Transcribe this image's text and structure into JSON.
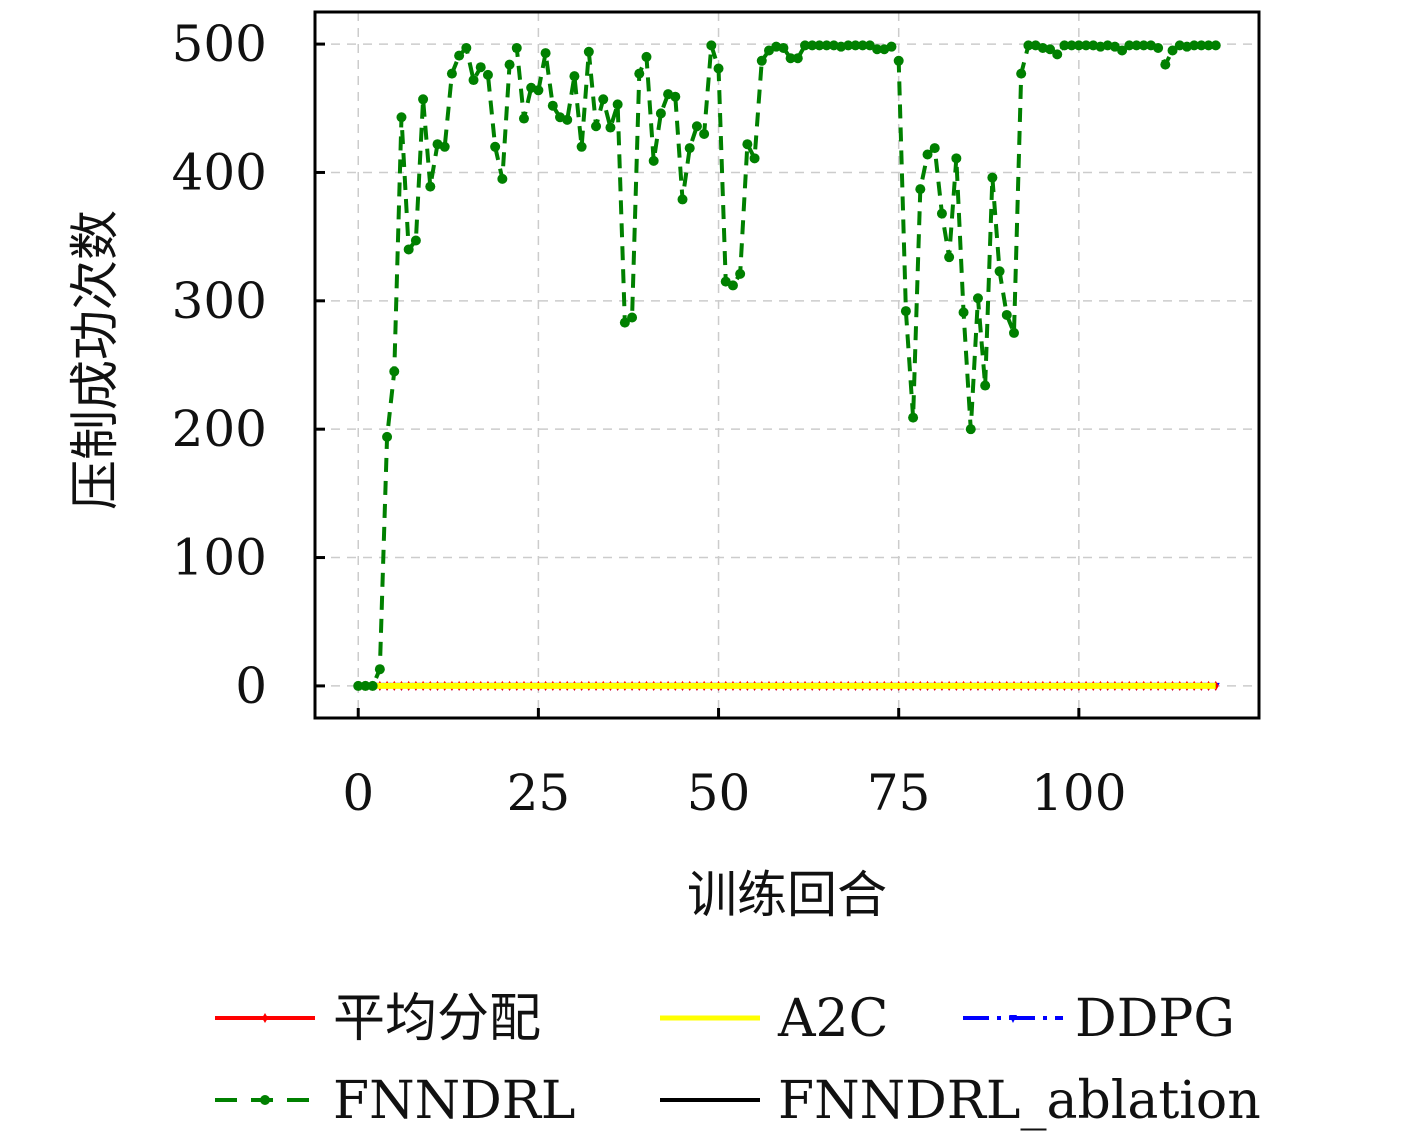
{
  "chart_data": {
    "type": "line",
    "title": "",
    "xlabel": "训练回合",
    "ylabel": "压制成功次数",
    "xlim": [
      -6,
      125
    ],
    "ylim": [
      -25,
      525
    ],
    "xticks": [
      0,
      25,
      50,
      75,
      100
    ],
    "yticks": [
      0,
      100,
      200,
      300,
      400,
      500
    ],
    "grid": true,
    "legend_position": "bottom",
    "series": [
      {
        "name": "平均分配",
        "color": "#ff0000",
        "linestyle": "solid",
        "marker": "diamond",
        "x_start": 0,
        "x_end": 119,
        "constant": 0
      },
      {
        "name": "A2C",
        "color": "#ffff00",
        "linestyle": "solid",
        "marker": "none",
        "x_start": 0,
        "x_end": 119,
        "constant": 0
      },
      {
        "name": "DDPG",
        "color": "#0000ff",
        "linestyle": "dashdot",
        "marker": "triangle-down",
        "x_start": 0,
        "x_end": 119,
        "constant": 0
      },
      {
        "name": "FNNDRL",
        "color": "#008000",
        "linestyle": "dashed",
        "marker": "dot",
        "x": [
          0,
          1,
          2,
          3,
          4,
          5,
          6,
          7,
          8,
          9,
          10,
          11,
          12,
          13,
          14,
          15,
          16,
          17,
          18,
          19,
          20,
          21,
          22,
          23,
          24,
          25,
          26,
          27,
          28,
          29,
          30,
          31,
          32,
          33,
          34,
          35,
          36,
          37,
          38,
          39,
          40,
          41,
          42,
          43,
          44,
          45,
          46,
          47,
          48,
          49,
          50,
          51,
          52,
          53,
          54,
          55,
          56,
          57,
          58,
          59,
          60,
          61,
          62,
          63,
          64,
          65,
          66,
          67,
          68,
          69,
          70,
          71,
          72,
          73,
          74,
          75,
          76,
          77,
          78,
          79,
          80,
          81,
          82,
          83,
          84,
          85,
          86,
          87,
          88,
          89,
          90,
          91,
          92,
          93,
          94,
          95,
          96,
          97,
          98,
          99,
          100,
          101,
          102,
          103,
          104,
          105,
          106,
          107,
          108,
          109,
          110,
          111,
          112,
          113,
          114,
          115,
          116,
          117,
          118,
          119
        ],
        "y": [
          0,
          0,
          0,
          13,
          194,
          245,
          443,
          340,
          347,
          457,
          389,
          422,
          420,
          477,
          491,
          497,
          472,
          482,
          476,
          420,
          395,
          484,
          497,
          442,
          466,
          464,
          493,
          452,
          443,
          441,
          475,
          420,
          494,
          436,
          457,
          435,
          453,
          283,
          287,
          477,
          490,
          409,
          446,
          461,
          459,
          379,
          419,
          436,
          430,
          499,
          481,
          315,
          312,
          321,
          422,
          411,
          487,
          495,
          498,
          497,
          489,
          489,
          499,
          499,
          499,
          499,
          499,
          498,
          499,
          499,
          499,
          499,
          496,
          496,
          498,
          487,
          292,
          209,
          387,
          414,
          419,
          368,
          334,
          411,
          291,
          200,
          302,
          234,
          396,
          323,
          289,
          275,
          477,
          499,
          499,
          497,
          496,
          492,
          499,
          499,
          499,
          499,
          499,
          498,
          499,
          498,
          495,
          499,
          499,
          499,
          499,
          497,
          484,
          495,
          499,
          498,
          499,
          499,
          499,
          499
        ]
      },
      {
        "name": "FNNDRL_ablation",
        "color": "#000000",
        "linestyle": "solid",
        "marker": "none",
        "x_start": 0,
        "x_end": 119,
        "constant": 0
      }
    ]
  }
}
